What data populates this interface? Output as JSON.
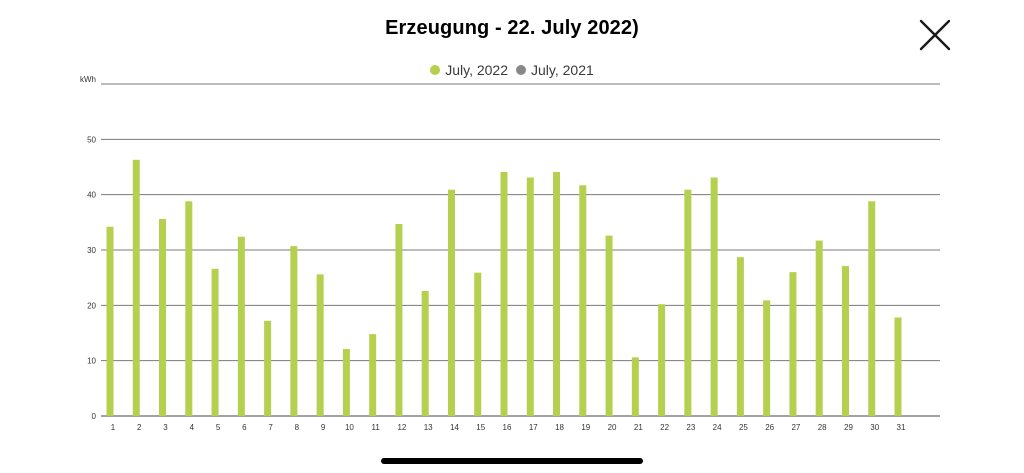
{
  "title": "Erzeugung - 22. July 2022)",
  "close_icon": "close-icon",
  "legend": [
    {
      "label": "July, 2022",
      "color": "#b5cf4f"
    },
    {
      "label": "July, 2021",
      "color": "#888888"
    }
  ],
  "chart_data": {
    "type": "bar",
    "ylabel": "kWh",
    "ylim": [
      0,
      60
    ],
    "yticks": [
      0,
      10,
      20,
      30,
      40,
      50
    ],
    "categories": [
      "1",
      "2",
      "3",
      "4",
      "5",
      "6",
      "7",
      "8",
      "9",
      "10",
      "11",
      "12",
      "13",
      "14",
      "15",
      "16",
      "17",
      "18",
      "19",
      "20",
      "21",
      "22",
      "23",
      "24",
      "25",
      "26",
      "27",
      "28",
      "29",
      "30",
      "31"
    ],
    "series": [
      {
        "name": "July, 2022",
        "color": "#b5cf4f",
        "values": [
          34.2,
          46.3,
          35.6,
          38.8,
          26.6,
          32.4,
          17.2,
          30.7,
          25.6,
          12.1,
          14.8,
          34.7,
          22.6,
          40.9,
          25.9,
          44.1,
          43.1,
          44.1,
          41.7,
          32.6,
          10.6,
          20.2,
          40.9,
          43.1,
          28.7,
          20.9,
          26.0,
          31.7,
          27.1,
          38.8,
          17.8
        ]
      }
    ],
    "grid": true
  }
}
